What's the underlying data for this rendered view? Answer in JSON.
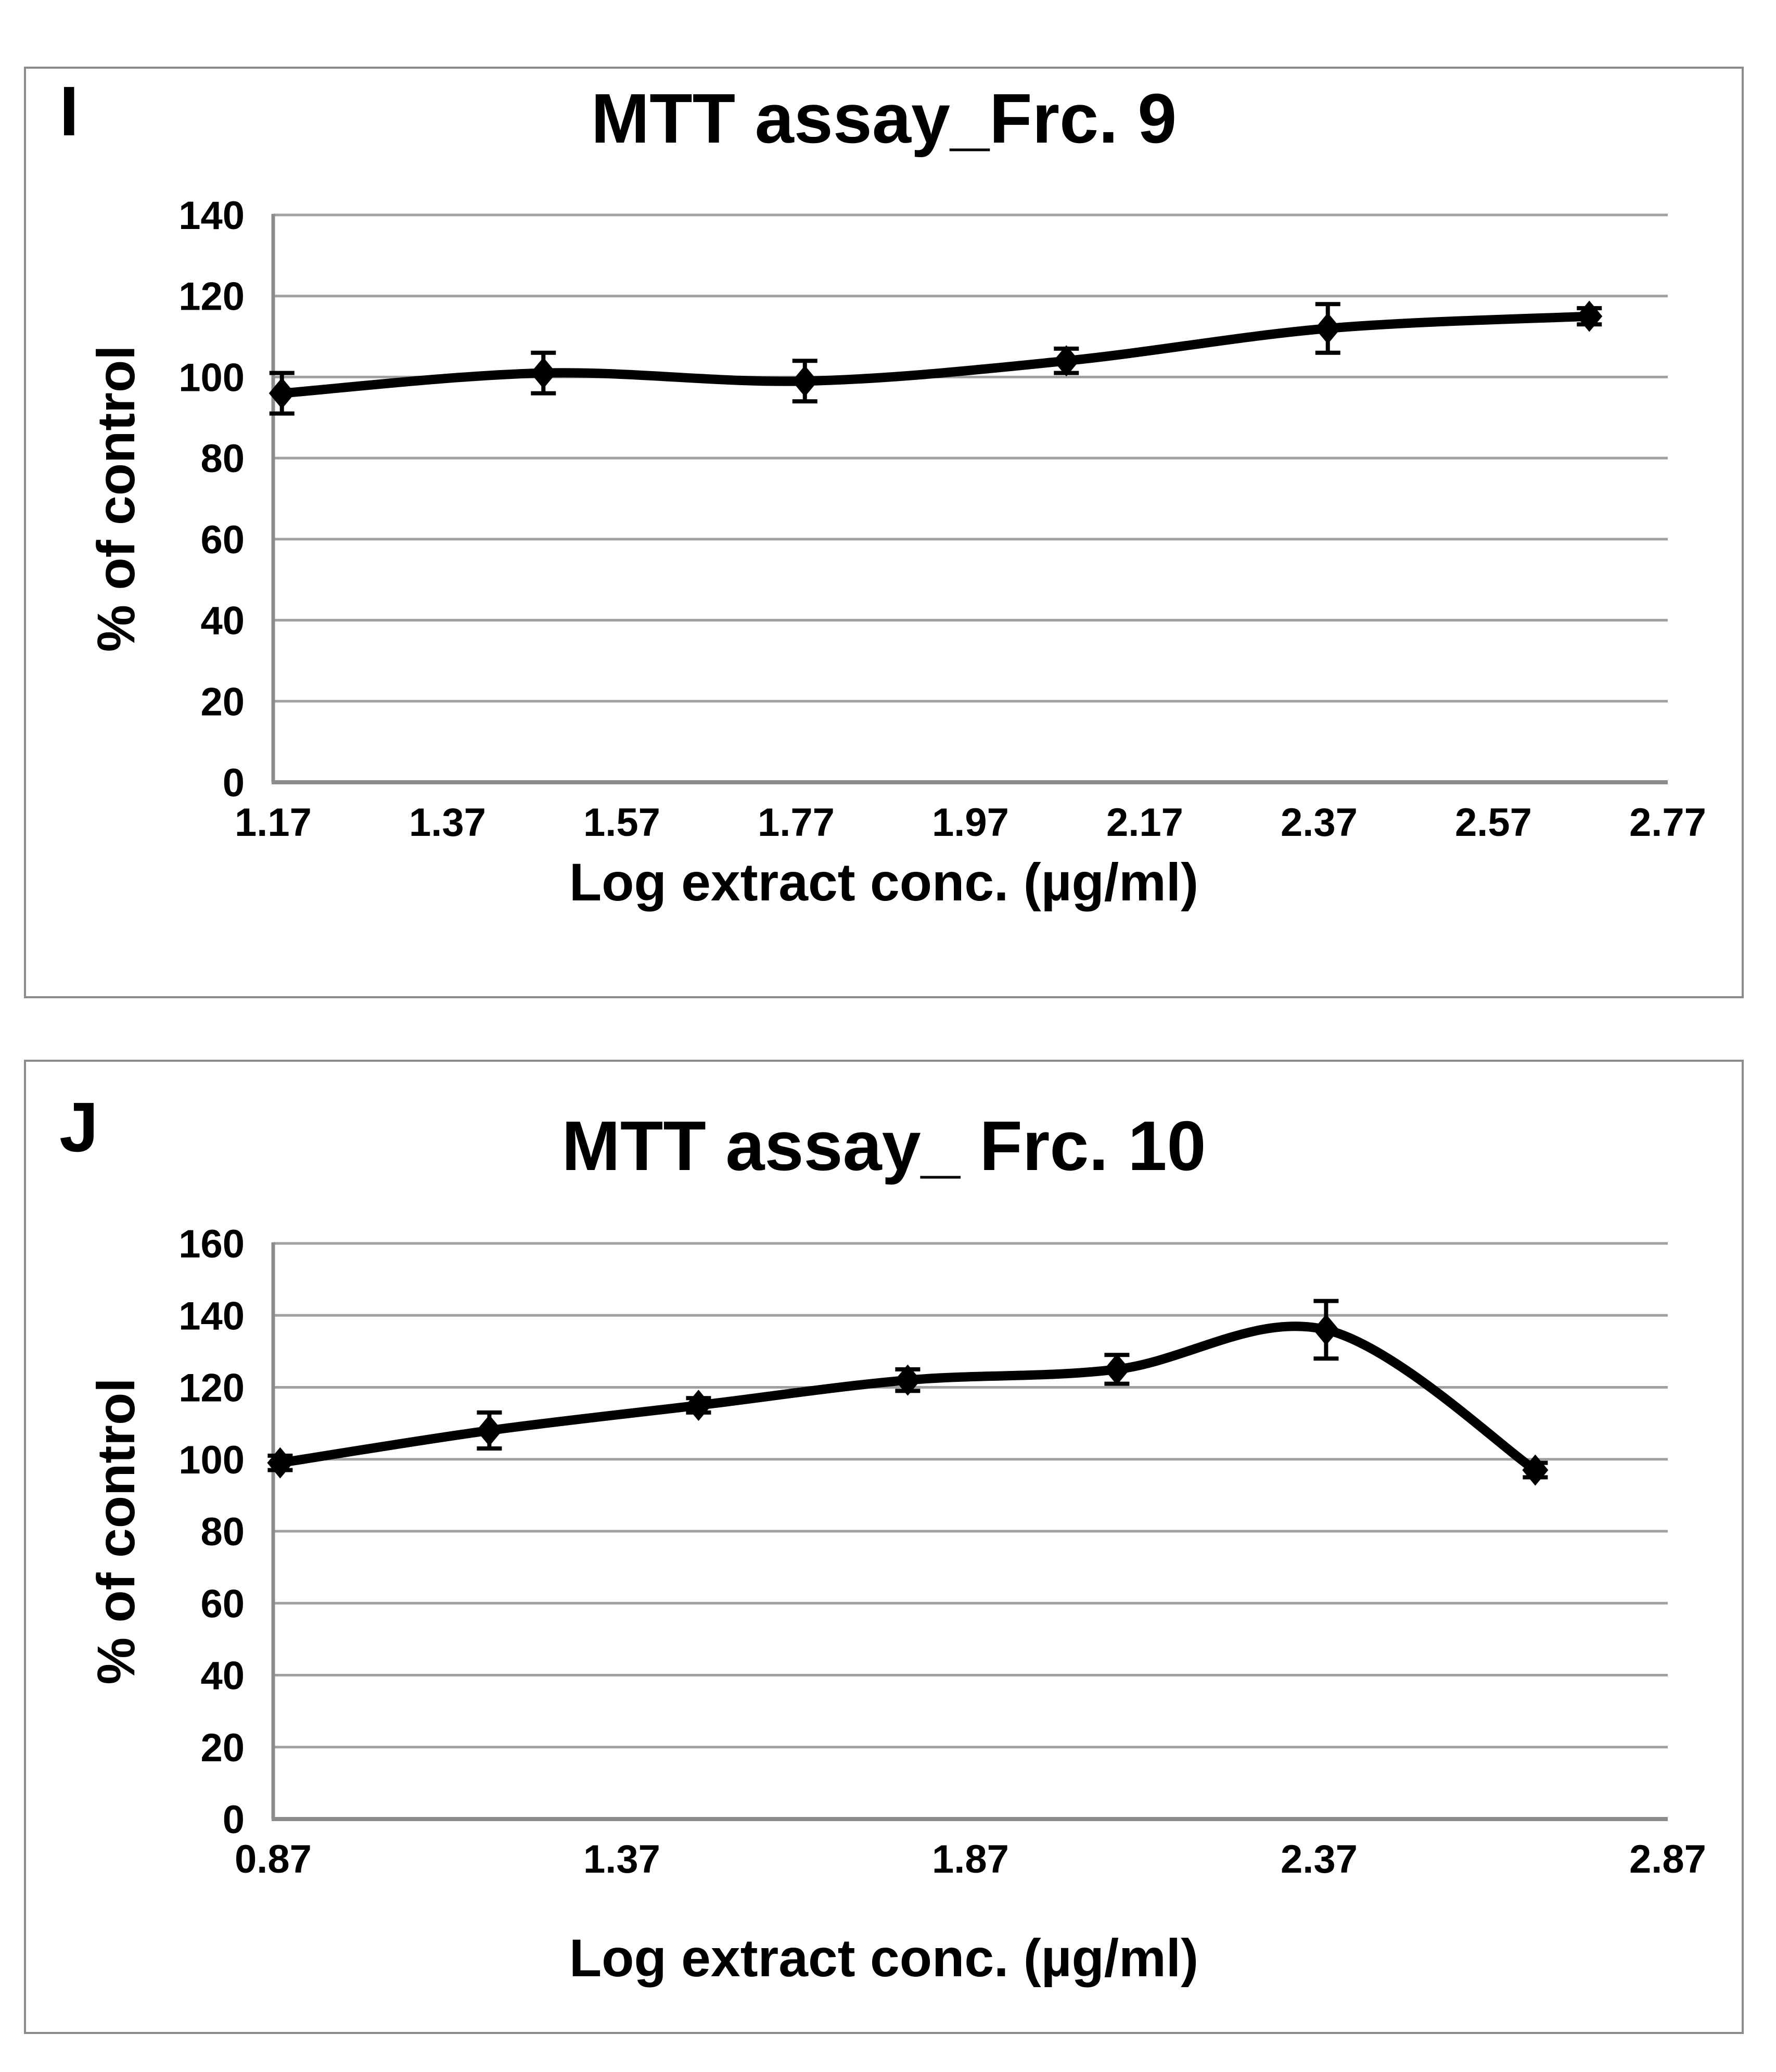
{
  "panels": [
    {
      "letter": "I",
      "title": "MTT assay_Frc. 9",
      "ylabel": "% of control",
      "xlabel": "Log extract conc. (µg/ml)"
    },
    {
      "letter": "J",
      "title": "MTT assay_ Frc. 10",
      "ylabel": "% of control",
      "xlabel": "Log extract conc. (µg/ml)"
    }
  ],
  "chart_data": [
    {
      "type": "line",
      "title": "MTT assay_Frc. 9",
      "xlabel": "Log extract conc. (µg/ml)",
      "ylabel": "% of control",
      "x_tick_labels": [
        "1.17",
        "1.37",
        "1.57",
        "1.77",
        "1.97",
        "2.17",
        "2.37",
        "2.57",
        "2.77"
      ],
      "xlim": [
        1.17,
        2.77
      ],
      "y_ticks": [
        0,
        20,
        40,
        60,
        80,
        100,
        120,
        140
      ],
      "ylim": [
        0,
        140
      ],
      "grid": true,
      "legend": "none",
      "marker": "diamond",
      "series": [
        {
          "name": "Frc. 9",
          "x": [
            1.18,
            1.48,
            1.78,
            2.08,
            2.38,
            2.68
          ],
          "y": [
            96,
            101,
            99,
            104,
            112,
            115
          ],
          "yerr": [
            5,
            5,
            5,
            3,
            6,
            2
          ]
        }
      ],
      "series_color": "#000000",
      "grid_color": "#a0a0a0",
      "axis_color": "#8c8c8c"
    },
    {
      "type": "line",
      "title": "MTT assay_ Frc. 10",
      "xlabel": "Log extract conc. (µg/ml)",
      "ylabel": "% of control",
      "x_tick_labels": [
        "0.87",
        "1.37",
        "1.87",
        "2.37",
        "2.87"
      ],
      "xlim": [
        0.87,
        2.87
      ],
      "y_ticks": [
        0,
        20,
        40,
        60,
        80,
        100,
        120,
        140,
        160
      ],
      "ylim": [
        0,
        160
      ],
      "grid": true,
      "legend": "none",
      "marker": "diamond",
      "series": [
        {
          "name": "Frc. 10",
          "x": [
            0.88,
            1.18,
            1.48,
            1.78,
            2.08,
            2.38,
            2.68
          ],
          "y": [
            99,
            108,
            115,
            122,
            125,
            136,
            97
          ],
          "yerr": [
            2,
            5,
            2,
            3,
            4,
            8,
            2
          ]
        }
      ],
      "series_color": "#000000",
      "grid_color": "#a0a0a0",
      "axis_color": "#8c8c8c"
    }
  ]
}
